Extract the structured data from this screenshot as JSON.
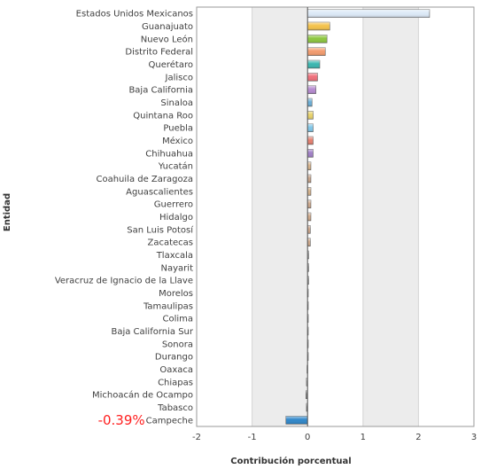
{
  "chart_data": {
    "type": "bar",
    "orientation": "horizontal",
    "xlabel": "Contribución porcentual",
    "ylabel": "Entidad",
    "xlim": [
      -2,
      3
    ],
    "xticks": [
      "-2",
      "-1",
      "0",
      "1",
      "2",
      "3"
    ],
    "grid": "alternating vertical bands",
    "annotation": "-0.39%",
    "categories": [
      "Estados Unidos Mexicanos",
      "Guanajuato",
      "Nuevo León",
      "Distrito Federal",
      "Querétaro",
      "Jalisco",
      "Baja California",
      "Sinaloa",
      "Quintana Roo",
      "Puebla",
      "México",
      "Chihuahua",
      "Yucatán",
      "Coahuila de Zaragoza",
      "Aguascalientes",
      "Guerrero",
      "Hidalgo",
      "San Luis Potosí",
      "Zacatecas",
      "Tlaxcala",
      "Nayarit",
      "Veracruz de Ignacio de la Llave",
      "Morelos",
      "Tamaulipas",
      "Colima",
      "Baja California Sur",
      "Sonora",
      "Durango",
      "Oaxaca",
      "Chiapas",
      "Michoacán de Ocampo",
      "Tabasco",
      "Campeche"
    ],
    "values": [
      2.2,
      0.4,
      0.35,
      0.32,
      0.22,
      0.18,
      0.15,
      0.08,
      0.1,
      0.1,
      0.1,
      0.1,
      0.06,
      0.06,
      0.06,
      0.06,
      0.06,
      0.05,
      0.05,
      0.02,
      0.02,
      0.02,
      0.01,
      0.01,
      0.01,
      0.01,
      0.01,
      0.0,
      -0.01,
      -0.02,
      -0.03,
      -0.02,
      -0.39
    ],
    "colors": [
      "#dce9f7",
      "#f4c24a",
      "#8cc63f",
      "#f39b6d",
      "#39b6b0",
      "#ef6f7a",
      "#b58ad0",
      "#6aaed6",
      "#e8d26a",
      "#7fc6e8",
      "#e57e6e",
      "#a07fc7",
      "#d9b48a",
      "#c9a48a",
      "#d6b38c",
      "#cfa98d",
      "#d2aa8a",
      "#cba58b",
      "#cda78a",
      "#b9b9b9",
      "#b9b9b9",
      "#b9b9b9",
      "#b9b9b9",
      "#b9b9b9",
      "#b9b9b9",
      "#b9b9b9",
      "#b9b9b9",
      "#b9b9b9",
      "#b9b9b9",
      "#b9b9b9",
      "#8a8a8a",
      "#8a8a8a",
      "#2f86c9"
    ],
    "annotation_color": "#ff2020"
  }
}
